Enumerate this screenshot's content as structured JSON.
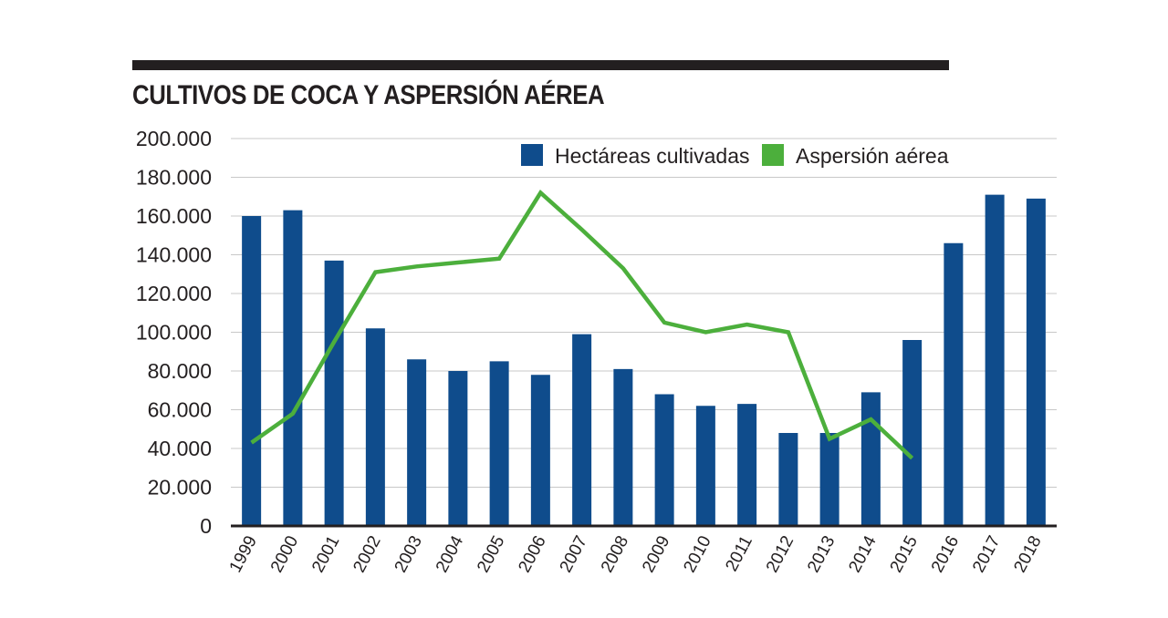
{
  "header": {
    "title": "CULTIVOS DE COCA Y ASPERSIÓN AÉREA"
  },
  "colors": {
    "bar": "#0f4c8c",
    "line": "#4caf3c",
    "grid": "#c8c8c8",
    "axis": "#231f20",
    "rule": "#231f20"
  },
  "chart_data": {
    "type": "bar",
    "title": "CULTIVOS DE COCA Y ASPERSIÓN AÉREA",
    "xlabel": "",
    "ylabel": "",
    "ylim": [
      0,
      200000
    ],
    "y_ticks": [
      "0",
      "20.000",
      "40.000",
      "60.000",
      "80.000",
      "100.000",
      "120.000",
      "140.000",
      "160.000",
      "180.000",
      "200.000"
    ],
    "grid": true,
    "legend_position": "top-right",
    "categories": [
      "1999",
      "2000",
      "2001",
      "2002",
      "2003",
      "2004",
      "2005",
      "2006",
      "2007",
      "2008",
      "2009",
      "2010",
      "2011",
      "2012",
      "2013",
      "2014",
      "2015",
      "2016",
      "2017",
      "2018"
    ],
    "series": [
      {
        "name": "Hectáreas cultivadas",
        "type": "bar",
        "values": [
          160000,
          163000,
          137000,
          102000,
          86000,
          80000,
          85000,
          78000,
          99000,
          81000,
          68000,
          62000,
          63000,
          48000,
          48000,
          69000,
          96000,
          146000,
          171000,
          169000
        ]
      },
      {
        "name": "Aspersión aérea",
        "type": "line",
        "values": [
          43000,
          58000,
          95000,
          131000,
          134000,
          136000,
          138000,
          172000,
          153000,
          133000,
          105000,
          100000,
          104000,
          100000,
          45000,
          55000,
          35000,
          null,
          null,
          null
        ]
      }
    ]
  }
}
